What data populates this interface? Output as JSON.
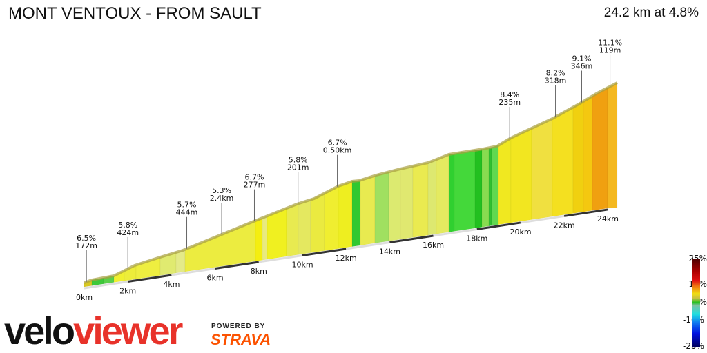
{
  "header": {
    "title": "MONT VENTOUX - FROM SAULT",
    "summary": "24.2 km at 4.8%"
  },
  "profile": {
    "distance_km": 24.2,
    "labels": [
      {
        "grade": "6.5%",
        "length": "172m",
        "km": 0.1
      },
      {
        "grade": "5.8%",
        "length": "424m",
        "km": 2.0
      },
      {
        "grade": "5.7%",
        "length": "444m",
        "km": 4.7
      },
      {
        "grade": "5.3%",
        "length": "2.4km",
        "km": 6.3
      },
      {
        "grade": "6.7%",
        "length": "277m",
        "km": 7.8
      },
      {
        "grade": "5.8%",
        "length": "201m",
        "km": 9.8
      },
      {
        "grade": "6.7%",
        "length": "0.50km",
        "km": 11.6
      },
      {
        "grade": "8.4%",
        "length": "235m",
        "km": 19.5
      },
      {
        "grade": "8.2%",
        "length": "318m",
        "km": 21.6
      },
      {
        "grade": "9.1%",
        "length": "346m",
        "km": 22.8
      },
      {
        "grade": "11.1%",
        "length": "119m",
        "km": 24.1
      }
    ],
    "km_ticks": [
      "0km",
      "2km",
      "4km",
      "6km",
      "8km",
      "10km",
      "12km",
      "14km",
      "16km",
      "18km",
      "20km",
      "22km",
      "24km"
    ],
    "segment_colors": [
      "#d8c820",
      "#3ec83a",
      "#5ad04a",
      "#f0f030",
      "#eded3a",
      "#eeee40",
      "#e0ea70",
      "#e4ea88",
      "#ecec40",
      "#f4ee10",
      "#e8ea80",
      "#f0f020",
      "#e8ea50",
      "#e4e860",
      "#eaea40",
      "#f0ee30",
      "#eeee20",
      "#30c830",
      "#e8ea50",
      "#a0e060",
      "#dcea70",
      "#e0e870",
      "#eaea50",
      "#dde870",
      "#e4ea60",
      "#30d030",
      "#44d83a",
      "#22c020",
      "#88dc50",
      "#30c030",
      "#60d850",
      "#f0e820",
      "#f2e620",
      "#f0e040",
      "#f4e020",
      "#f0d010",
      "#f4c810",
      "#f0a010",
      "#f4b820"
    ]
  },
  "legend": {
    "ticks": [
      "25%",
      "10%",
      "0%",
      "-10%",
      "-25%"
    ]
  },
  "branding": {
    "logo_a": "velo",
    "logo_b": "viewer",
    "powered_by": "POWERED BY",
    "strava": "STRAVA"
  }
}
